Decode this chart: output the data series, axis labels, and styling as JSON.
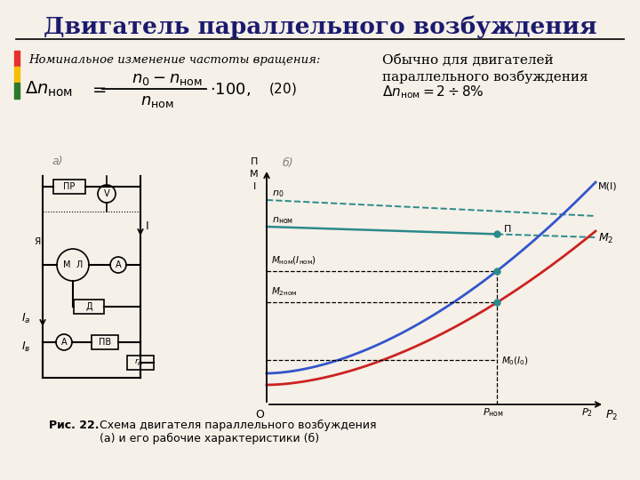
{
  "title": "Двигатель параллельного возбуждения",
  "bg_color": "#f5f0e8",
  "title_color": "#1a1a6e",
  "subtitle": "Номинальное изменение частоты вращения:",
  "right_text_line1": "Обычно для двигателей",
  "right_text_line2": "параллельного возбуждения",
  "right_text_line3": "Δnном = 2÷8%",
  "fig_caption": "Рис. 22.",
  "fig_caption2": "Схема двигателя параллельного возбуждения",
  "fig_caption3": "(а) и его рабочие характеристики (б)",
  "accent_bar_colors": [
    "#e63030",
    "#f5c000",
    "#2a7a2a"
  ]
}
